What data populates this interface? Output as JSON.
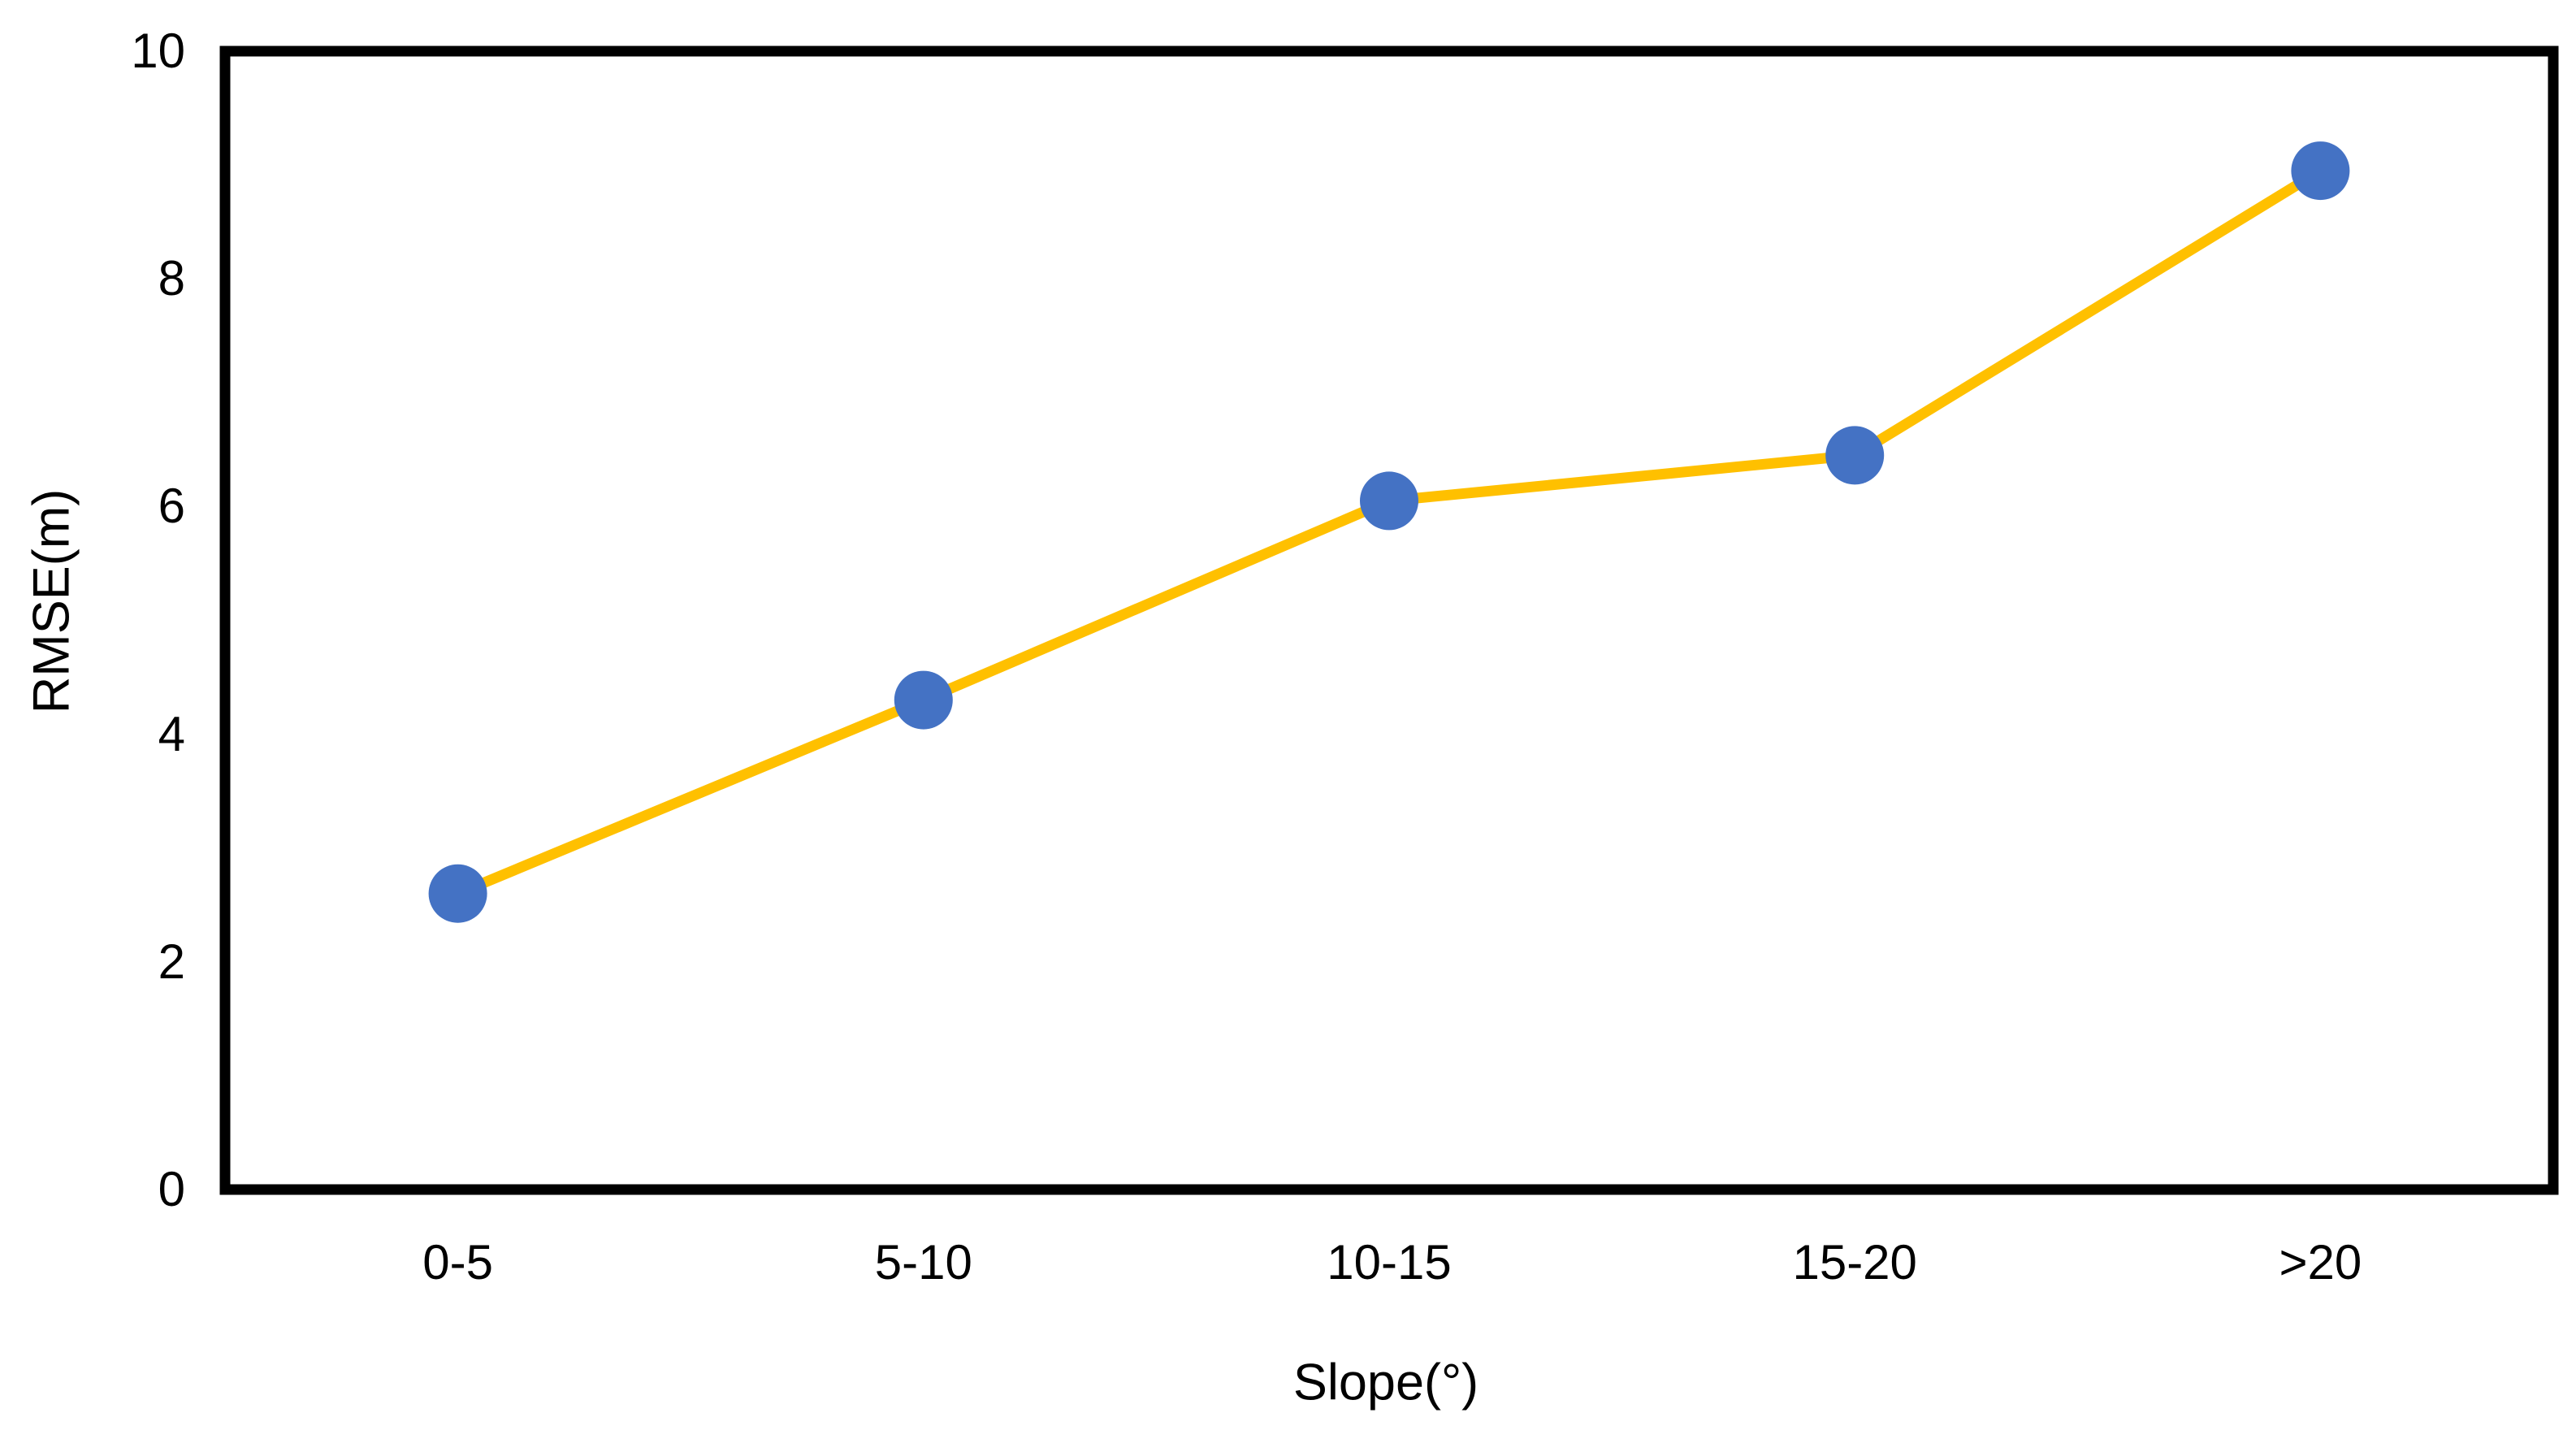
{
  "chart_data": {
    "type": "line",
    "categories": [
      "0-5",
      "5-10",
      "10-15",
      "15-20",
      ">20"
    ],
    "series": [
      {
        "name": "RMSE",
        "values": [
          2.6,
          4.3,
          6.05,
          6.45,
          8.95
        ]
      }
    ],
    "title": "",
    "xlabel": "Slope(°)",
    "ylabel": "RMSE(m)",
    "ylim": [
      0,
      10
    ],
    "yticks": [
      0,
      2,
      4,
      6,
      8,
      10
    ],
    "grid": false,
    "legend": "none",
    "line_color": "#FFC000",
    "marker_color": "#4472C4",
    "frame_color": "#000000",
    "background_color": "#FFFFFF"
  }
}
